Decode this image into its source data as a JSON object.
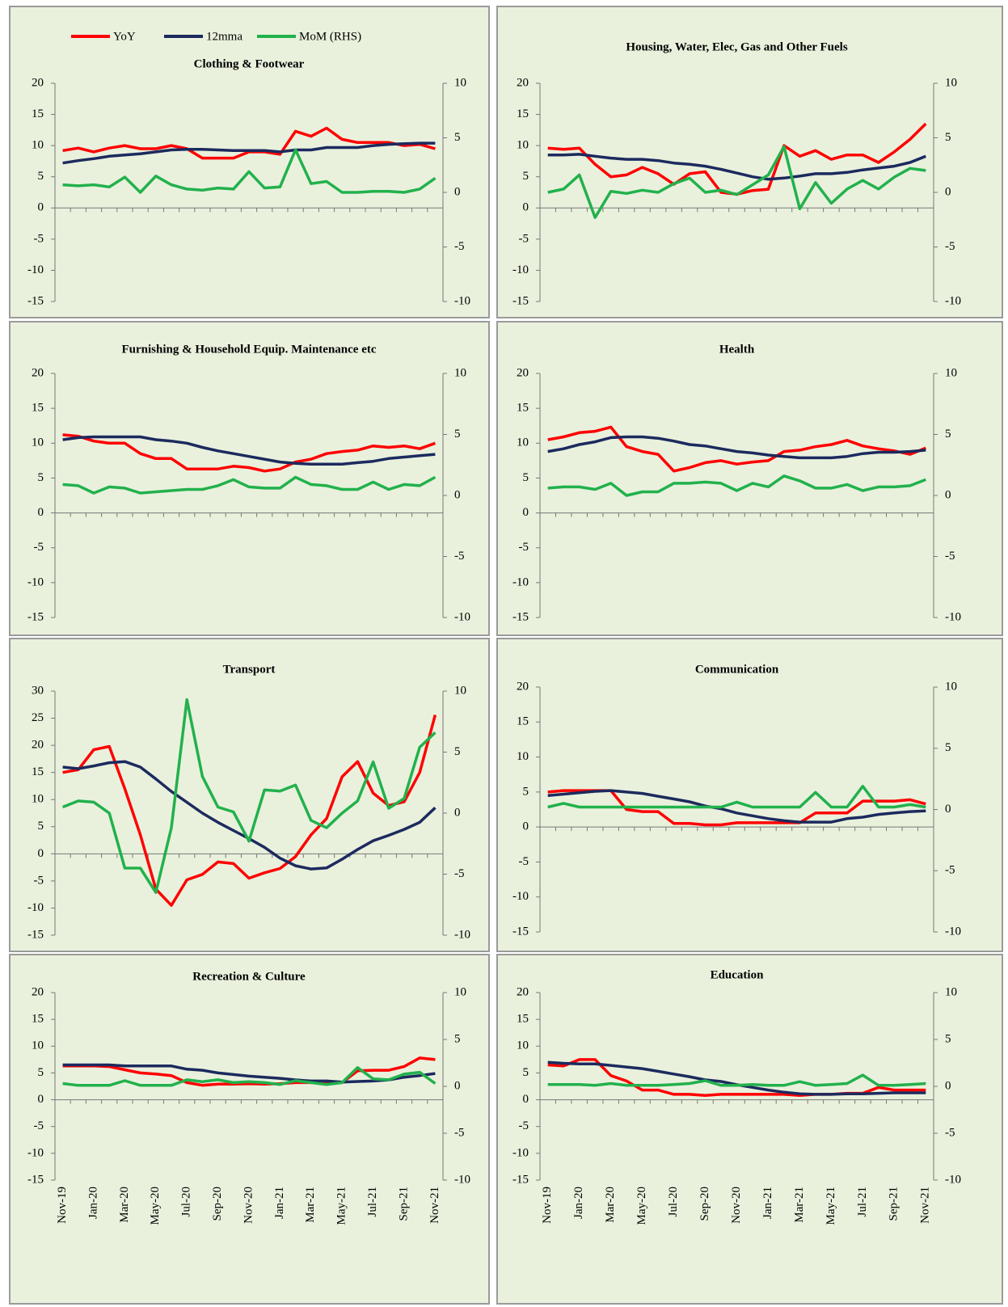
{
  "chart_data": [
    {
      "type": "line",
      "title": "Clothing & Footwear",
      "ylim": [
        -15,
        20
      ],
      "yticks": [
        -15,
        -10,
        -5,
        0,
        5,
        10,
        15,
        20
      ],
      "y2lim": [
        -10,
        10
      ],
      "y2ticks": [
        -10,
        -5,
        0,
        5,
        10
      ],
      "series": [
        {
          "name": "YoY",
          "color": "#ff0000",
          "values": [
            9.2,
            9.6,
            9,
            9.6,
            10,
            9.5,
            9.5,
            10,
            9.5,
            8,
            8,
            8,
            9,
            9,
            8.6,
            12.3,
            11.5,
            12.8,
            11,
            10.5,
            10.5,
            10.5,
            10,
            10.2,
            9.5
          ]
        },
        {
          "name": "12mma",
          "color": "#1c2a5e",
          "values": [
            7.2,
            7.6,
            7.9,
            8.3,
            8.5,
            8.7,
            9,
            9.3,
            9.4,
            9.4,
            9.3,
            9.2,
            9.2,
            9.2,
            9,
            9.3,
            9.3,
            9.7,
            9.7,
            9.7,
            10,
            10.2,
            10.3,
            10.4,
            10.4
          ]
        },
        {
          "name": "MoM (RHS)",
          "color": "#22b14c",
          "axis": "y2",
          "values": [
            0.7,
            0.6,
            0.7,
            0.5,
            1.4,
            0,
            1.5,
            0.7,
            0.3,
            0.2,
            0.4,
            0.3,
            1.9,
            0.4,
            0.5,
            3.9,
            0.8,
            1,
            0,
            0,
            0.1,
            0.1,
            0,
            0.3,
            1.3
          ]
        }
      ]
    },
    {
      "type": "line",
      "title": "Housing, Water, Elec, Gas and Other Fuels",
      "ylim": [
        -15,
        20
      ],
      "yticks": [
        -15,
        -10,
        -5,
        0,
        5,
        10,
        15,
        20
      ],
      "y2lim": [
        -10,
        10
      ],
      "y2ticks": [
        -10,
        -5,
        0,
        5,
        10
      ],
      "series": [
        {
          "color": "#ff0000",
          "values": [
            9.6,
            9.4,
            9.6,
            7,
            5,
            5.3,
            6.5,
            5.5,
            3.8,
            5.5,
            5.8,
            2.5,
            2.2,
            2.8,
            3,
            10,
            8.3,
            9.2,
            7.8,
            8.5,
            8.5,
            7.3,
            9,
            11,
            13.5
          ]
        },
        {
          "color": "#1c2a5e",
          "values": [
            8.5,
            8.5,
            8.6,
            8.3,
            8,
            7.8,
            7.8,
            7.6,
            7.2,
            7,
            6.7,
            6.2,
            5.6,
            5,
            4.6,
            4.8,
            5.1,
            5.5,
            5.5,
            5.7,
            6.1,
            6.4,
            6.7,
            7.3,
            8.3
          ]
        },
        {
          "color": "#22b14c",
          "axis": "y2",
          "values": [
            0,
            0.3,
            1.6,
            -2.3,
            0.1,
            -0.1,
            0.2,
            0,
            0.8,
            1.3,
            0,
            0.2,
            -0.2,
            0.7,
            1.6,
            4.2,
            -1.5,
            0.9,
            -1,
            0.3,
            1.1,
            0.3,
            1.4,
            2.2,
            2
          ]
        }
      ]
    },
    {
      "type": "line",
      "title": "Furnishing & Household Equip. Maintenance etc",
      "ylim": [
        -15,
        20
      ],
      "yticks": [
        -15,
        -10,
        -5,
        0,
        5,
        10,
        15,
        20
      ],
      "y2lim": [
        -10,
        10
      ],
      "y2ticks": [
        -10,
        -5,
        0,
        5,
        10
      ],
      "series": [
        {
          "color": "#ff0000",
          "values": [
            11.2,
            11,
            10.3,
            10,
            10,
            8.5,
            7.8,
            7.8,
            6.3,
            6.3,
            6.3,
            6.7,
            6.5,
            6,
            6.3,
            7.3,
            7.7,
            8.5,
            8.8,
            9,
            9.6,
            9.4,
            9.6,
            9.2,
            10
          ]
        },
        {
          "color": "#1c2a5e",
          "values": [
            10.5,
            10.8,
            10.9,
            10.9,
            10.9,
            10.9,
            10.5,
            10.3,
            10,
            9.4,
            8.9,
            8.5,
            8.1,
            7.7,
            7.3,
            7.1,
            7,
            7,
            7,
            7.2,
            7.4,
            7.8,
            8,
            8.2,
            8.4
          ]
        },
        {
          "color": "#22b14c",
          "axis": "y2",
          "values": [
            0.9,
            0.8,
            0.2,
            0.7,
            0.6,
            0.2,
            0.3,
            0.4,
            0.5,
            0.5,
            0.8,
            1.3,
            0.7,
            0.6,
            0.6,
            1.5,
            0.9,
            0.8,
            0.5,
            0.5,
            1.1,
            0.5,
            0.9,
            0.8,
            1.5
          ]
        }
      ]
    },
    {
      "type": "line",
      "title": "Health",
      "ylim": [
        -15,
        20
      ],
      "yticks": [
        -15,
        -10,
        -5,
        0,
        5,
        10,
        15,
        20
      ],
      "y2lim": [
        -10,
        10
      ],
      "y2ticks": [
        -10,
        -5,
        0,
        5,
        10
      ],
      "series": [
        {
          "color": "#ff0000",
          "values": [
            10.5,
            10.9,
            11.5,
            11.7,
            12.3,
            9.5,
            8.8,
            8.4,
            6,
            6.5,
            7.2,
            7.5,
            7,
            7.3,
            7.5,
            8.8,
            9,
            9.5,
            9.8,
            10.4,
            9.6,
            9.2,
            8.9,
            8.4,
            9.3
          ]
        },
        {
          "color": "#1c2a5e",
          "values": [
            8.8,
            9.2,
            9.8,
            10.2,
            10.8,
            10.9,
            10.9,
            10.7,
            10.3,
            9.8,
            9.6,
            9.2,
            8.8,
            8.6,
            8.3,
            8.1,
            7.9,
            7.9,
            7.9,
            8.1,
            8.5,
            8.7,
            8.7,
            8.8,
            9
          ]
        },
        {
          "color": "#22b14c",
          "axis": "y2",
          "values": [
            0.6,
            0.7,
            0.7,
            0.5,
            1,
            0,
            0.3,
            0.3,
            1,
            1,
            1.1,
            1,
            0.4,
            1,
            0.7,
            1.6,
            1.2,
            0.6,
            0.6,
            0.9,
            0.4,
            0.7,
            0.7,
            0.8,
            1.3
          ]
        }
      ]
    },
    {
      "type": "line",
      "title": "Transport",
      "ylim": [
        -15,
        30
      ],
      "yticks": [
        -15,
        -10,
        -5,
        0,
        5,
        10,
        15,
        20,
        25,
        30
      ],
      "y2lim": [
        -10,
        10
      ],
      "y2ticks": [
        -10,
        -5,
        0,
        5,
        10
      ],
      "series": [
        {
          "color": "#ff0000",
          "values": [
            15,
            15.5,
            19.2,
            19.8,
            12,
            3.5,
            -6.5,
            -9.5,
            -4.8,
            -3.8,
            -1.5,
            -1.8,
            -4.5,
            -3.5,
            -2.7,
            -0.5,
            3.5,
            6.5,
            14.2,
            17,
            11.2,
            8.9,
            9.6,
            15,
            25.6
          ]
        },
        {
          "color": "#1c2a5e",
          "values": [
            16,
            15.7,
            16.2,
            16.8,
            17,
            16,
            13.8,
            11.5,
            9.5,
            7.5,
            5.8,
            4.3,
            2.8,
            1.2,
            -0.8,
            -2.2,
            -2.8,
            -2.6,
            -1,
            0.8,
            2.4,
            3.4,
            4.5,
            5.8,
            8.5
          ]
        },
        {
          "color": "#22b14c",
          "axis": "y2",
          "values": [
            0.5,
            1,
            0.9,
            0,
            -4.5,
            -4.5,
            -6.5,
            -1.2,
            9.3,
            3,
            0.5,
            0.1,
            -2.3,
            1.9,
            1.8,
            2.3,
            -0.6,
            -1.2,
            0,
            1,
            4.2,
            0.4,
            1.2,
            5.4,
            6.6
          ]
        }
      ]
    },
    {
      "type": "line",
      "title": "Communication",
      "ylim": [
        -15,
        20
      ],
      "yticks": [
        -15,
        -10,
        -5,
        0,
        5,
        10,
        15,
        20
      ],
      "y2lim": [
        -10,
        10
      ],
      "y2ticks": [
        -10,
        -5,
        0,
        5,
        10
      ],
      "series": [
        {
          "color": "#ff0000",
          "values": [
            5,
            5.2,
            5.2,
            5.2,
            5.2,
            2.5,
            2.2,
            2.2,
            0.5,
            0.5,
            0.3,
            0.3,
            0.6,
            0.6,
            0.6,
            0.6,
            0.6,
            2,
            2,
            2,
            3.7,
            3.7,
            3.7,
            3.9,
            3.3
          ]
        },
        {
          "color": "#1c2a5e",
          "values": [
            4.5,
            4.7,
            4.9,
            5.1,
            5.2,
            5,
            4.8,
            4.4,
            4,
            3.6,
            3,
            2.6,
            2,
            1.6,
            1.2,
            0.9,
            0.7,
            0.7,
            0.7,
            1.2,
            1.4,
            1.8,
            2,
            2.2,
            2.3
          ]
        },
        {
          "color": "#22b14c",
          "axis": "y2",
          "values": [
            0.2,
            0.5,
            0.2,
            0.2,
            0.2,
            0.2,
            0.2,
            0.2,
            0.2,
            0.2,
            0.2,
            0.2,
            0.6,
            0.2,
            0.2,
            0.2,
            0.2,
            1.4,
            0.2,
            0.2,
            1.9,
            0.2,
            0.2,
            0.4,
            0.2
          ]
        }
      ]
    },
    {
      "type": "line",
      "title": "Recreation & Culture",
      "ylim": [
        -15,
        20
      ],
      "yticks": [
        -15,
        -10,
        -5,
        0,
        5,
        10,
        15,
        20
      ],
      "y2lim": [
        -10,
        10
      ],
      "y2ticks": [
        -10,
        -5,
        0,
        5,
        10
      ],
      "categories": [
        "Nov-19",
        null,
        "Jan-20",
        null,
        "Mar-20",
        null,
        "May-20",
        null,
        "Jul-20",
        null,
        "Sep-20",
        null,
        "Nov-20",
        null,
        "Jan-21",
        null,
        "Mar-21",
        null,
        "May-21",
        null,
        "Jul-21",
        null,
        "Sep-21",
        null,
        "Nov-21"
      ],
      "series": [
        {
          "color": "#ff0000",
          "values": [
            6.3,
            6.3,
            6.3,
            6.2,
            5.6,
            5,
            4.8,
            4.5,
            3.2,
            2.7,
            2.9,
            2.9,
            3,
            2.9,
            3,
            3.2,
            3.2,
            3.1,
            3.2,
            5.4,
            5.5,
            5.5,
            6.2,
            7.8,
            7.5
          ]
        },
        {
          "color": "#1c2a5e",
          "values": [
            6.5,
            6.5,
            6.5,
            6.5,
            6.3,
            6.3,
            6.3,
            6.3,
            5.7,
            5.5,
            5,
            4.7,
            4.4,
            4.2,
            4,
            3.7,
            3.5,
            3.5,
            3.3,
            3.4,
            3.5,
            3.7,
            4.2,
            4.5,
            4.9
          ]
        },
        {
          "color": "#22b14c",
          "axis": "y2",
          "values": [
            0.3,
            0.1,
            0.1,
            0.1,
            0.6,
            0.1,
            0.1,
            0.1,
            0.7,
            0.5,
            0.7,
            0.4,
            0.5,
            0.4,
            0.2,
            0.6,
            0.4,
            0.2,
            0.4,
            2,
            0.8,
            0.7,
            1.3,
            1.5,
            0.3
          ]
        }
      ]
    },
    {
      "type": "line",
      "title": "Education",
      "ylim": [
        -15,
        20
      ],
      "yticks": [
        -15,
        -10,
        -5,
        0,
        5,
        10,
        15,
        20
      ],
      "y2lim": [
        -10,
        10
      ],
      "y2ticks": [
        -10,
        -5,
        0,
        5,
        10
      ],
      "categories": [
        "Nov-19",
        null,
        "Jan-20",
        null,
        "Mar-20",
        null,
        "May-20",
        null,
        "Jul-20",
        null,
        "Sep-20",
        null,
        "Nov-20",
        null,
        "Jan-21",
        null,
        "Mar-21",
        null,
        "May-21",
        null,
        "Jul-21",
        null,
        "Sep-21",
        null,
        "Nov-21"
      ],
      "series": [
        {
          "color": "#ff0000",
          "values": [
            6.5,
            6.3,
            7.5,
            7.5,
            4.5,
            3.5,
            1.8,
            1.8,
            1,
            1,
            0.8,
            1,
            1,
            1,
            1,
            1,
            0.8,
            1,
            1,
            1.2,
            1.2,
            2.3,
            1.8,
            1.8,
            1.8
          ]
        },
        {
          "color": "#1c2a5e",
          "values": [
            7,
            6.8,
            6.7,
            6.7,
            6.4,
            6.1,
            5.8,
            5.3,
            4.8,
            4.3,
            3.7,
            3.4,
            2.8,
            2.3,
            1.8,
            1.4,
            1.1,
            1,
            1,
            1.1,
            1.1,
            1.2,
            1.3,
            1.3,
            1.3
          ]
        },
        {
          "color": "#22b14c",
          "axis": "y2",
          "values": [
            0.2,
            0.2,
            0.2,
            0.1,
            0.3,
            0.1,
            0.1,
            0.1,
            0.2,
            0.3,
            0.6,
            0.1,
            0.1,
            0.2,
            0.1,
            0.1,
            0.5,
            0.1,
            0.2,
            0.3,
            1.2,
            0.1,
            0.1,
            0.2,
            0.3
          ]
        }
      ]
    }
  ]
}
